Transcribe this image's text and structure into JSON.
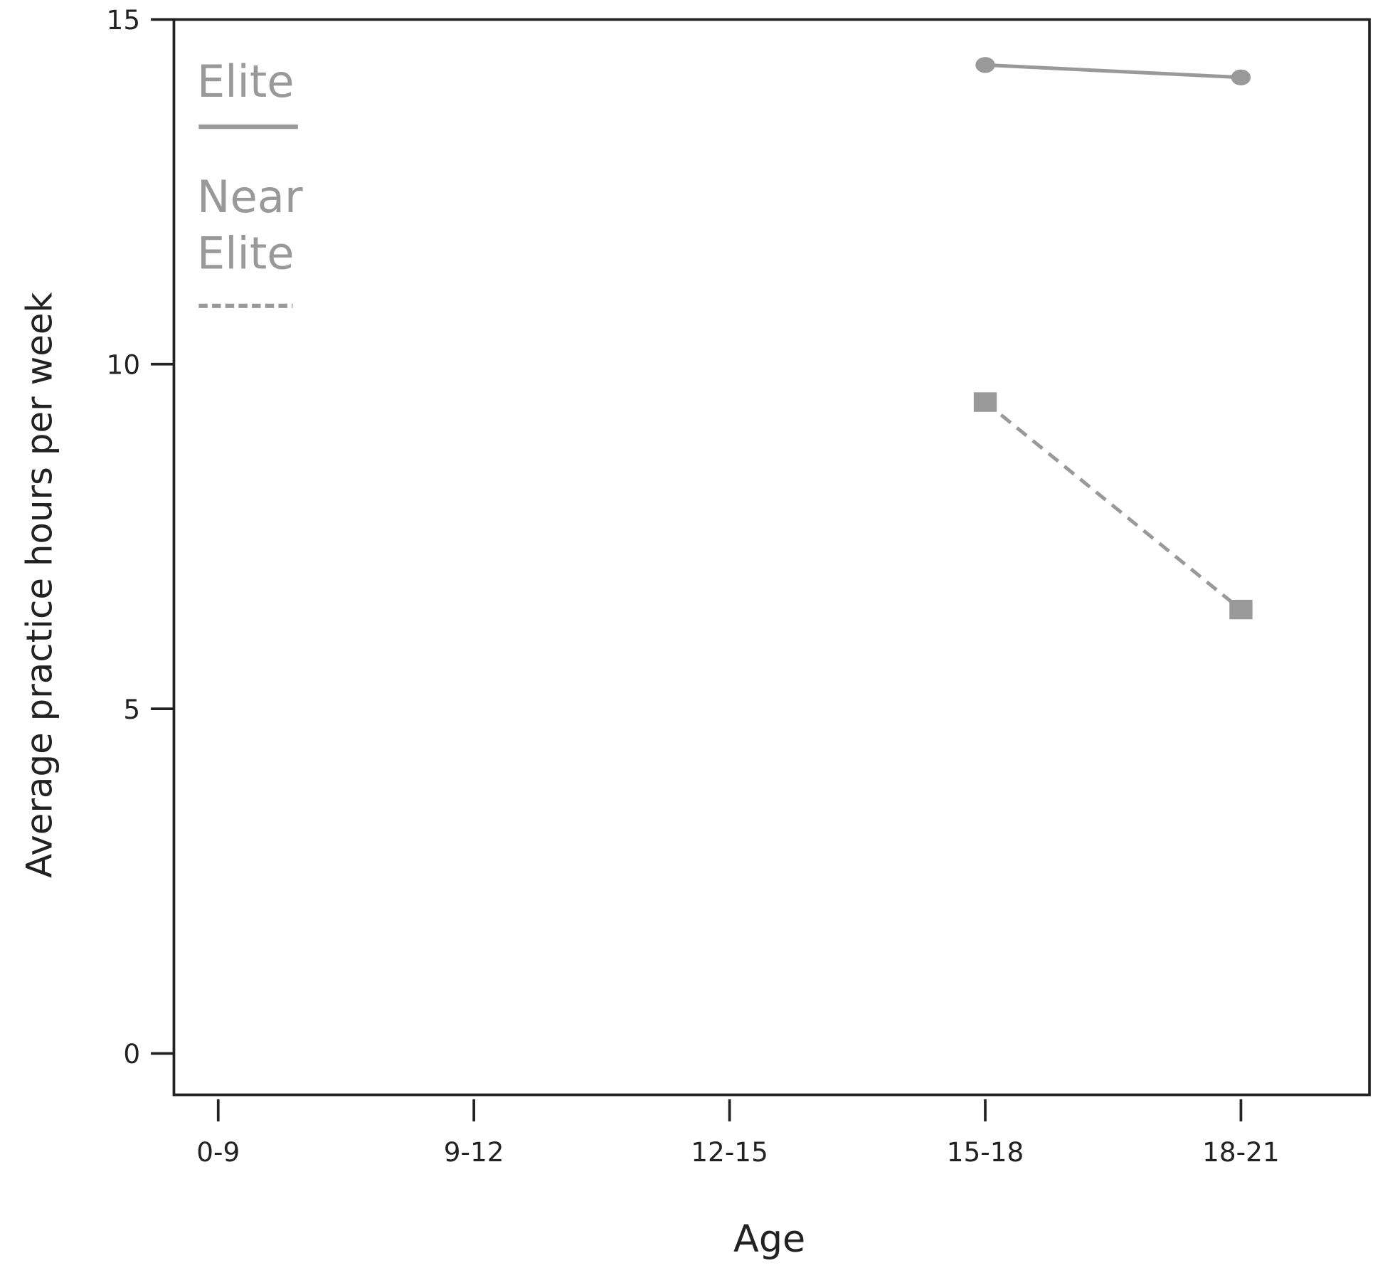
{
  "chart_data": {
    "type": "line",
    "x_label": "Age",
    "y_label": "Average practice hours per week",
    "categories": [
      "0-9",
      "9-12",
      "12-15",
      "15-18",
      "18-21"
    ],
    "series": [
      {
        "name": "Elite",
        "color": "#999999",
        "linestyle": "solid",
        "marker": "circle",
        "values": [
          null,
          null,
          null,
          14.34,
          14.16
        ]
      },
      {
        "name": "Near Elite",
        "color": "#999999",
        "linestyle": "dashed",
        "marker": "square",
        "values": [
          null,
          null,
          null,
          9.45,
          6.44
        ]
      }
    ],
    "ylim": [
      -0.6,
      15
    ],
    "yticks": [
      0,
      5,
      10,
      15
    ],
    "legend": "upper left"
  }
}
